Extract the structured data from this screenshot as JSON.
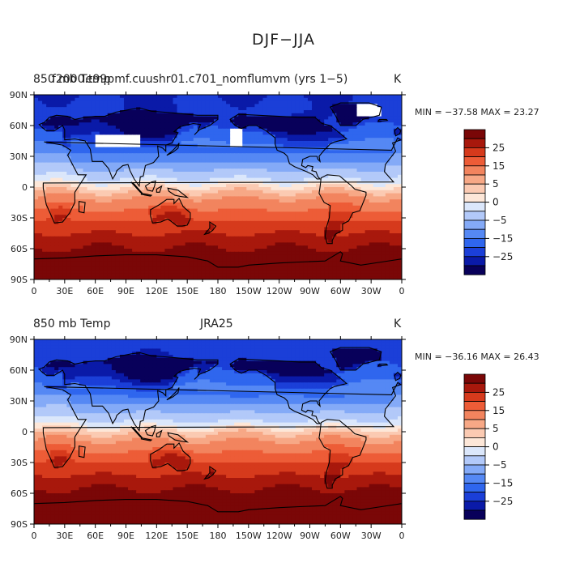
{
  "main_title": "DJF−JJA",
  "colors": {
    "palette": [
      "#08005a",
      "#0a1aa8",
      "#1b3fd8",
      "#2f66ee",
      "#5588f4",
      "#84aaf7",
      "#b2c9f9",
      "#dbe7fb",
      "#fde7d8",
      "#fbcab2",
      "#f7a886",
      "#f2845e",
      "#ed5c37",
      "#d63a1c",
      "#a8180c",
      "#7a0707"
    ],
    "land_outline": "#000000",
    "missing": "#ffffff"
  },
  "panels": [
    {
      "id": "model",
      "left_title": "850 mb Temp",
      "center_title": "f2000.t99pmf.cuushr01.c701_nomflumvm (yrs 1−5)",
      "units": "K",
      "stats": "MIN = −37.58  MAX =  23.27",
      "has_missing": true
    },
    {
      "id": "obs",
      "left_title": "850 mb Temp",
      "center_title": "JRA25",
      "units": "K",
      "stats": "MIN = −36.16  MAX =  26.43",
      "has_missing": false
    }
  ],
  "x_ticks": [
    "0",
    "30E",
    "60E",
    "90E",
    "120E",
    "150E",
    "180",
    "150W",
    "120W",
    "90W",
    "60W",
    "30W",
    "0"
  ],
  "y_ticks": [
    "90N",
    "60N",
    "30N",
    "0",
    "30S",
    "60S",
    "90S"
  ],
  "colorbar_labels": [
    "25",
    "15",
    "5",
    "0",
    "−5",
    "−15",
    "−25"
  ],
  "chart_data": {
    "type": "heatmap",
    "title": "DJF−JJA",
    "variable": "850 mb Temp",
    "units": "K",
    "projection": "cylindrical equidistant",
    "xlim": [
      0,
      360
    ],
    "ylim": [
      -90,
      90
    ],
    "contour_levels": [
      -35,
      -30,
      -25,
      -20,
      -15,
      -10,
      -5,
      -2,
      0,
      2,
      5,
      10,
      15,
      20,
      25,
      30
    ],
    "fields": [
      {
        "name": "f2000.t99pmf.cuushr01.c701_nomflumvm (yrs 1−5)",
        "min": -37.58,
        "max": 23.27
      },
      {
        "name": "JRA25",
        "min": -36.16,
        "max": 26.43
      }
    ]
  }
}
